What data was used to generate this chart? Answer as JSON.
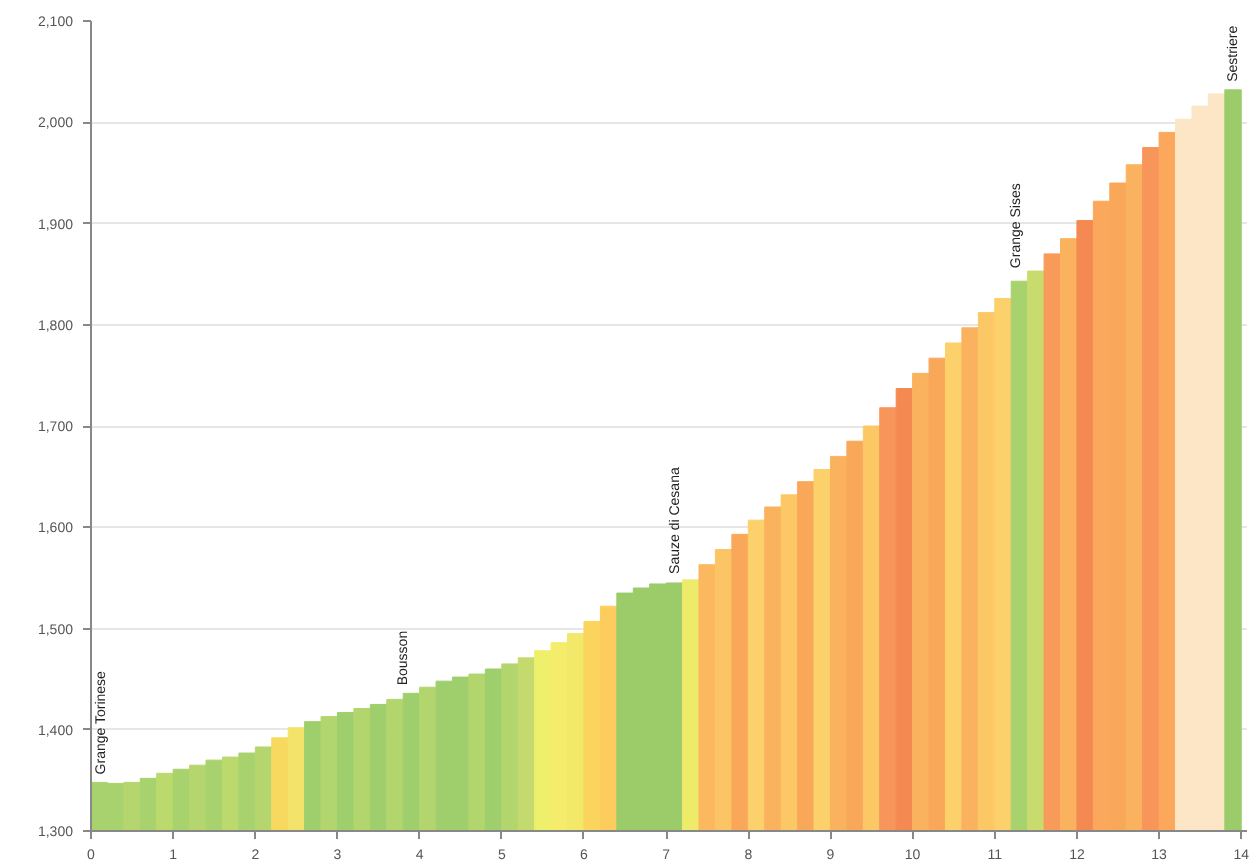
{
  "chart_data": {
    "type": "bar",
    "x": [
      0.1,
      0.3,
      0.5,
      0.7,
      0.9,
      1.1,
      1.3,
      1.5,
      1.7,
      1.9,
      2.1,
      2.3,
      2.5,
      2.7,
      2.9,
      3.1,
      3.3,
      3.5,
      3.7,
      3.9,
      4.1,
      4.3,
      4.5,
      4.7,
      4.9,
      5.1,
      5.3,
      5.5,
      5.7,
      5.9,
      6.1,
      6.3,
      6.5,
      6.7,
      6.9,
      7.1,
      7.3,
      7.5,
      7.7,
      7.9,
      8.1,
      8.3,
      8.5,
      8.7,
      8.9,
      9.1,
      9.3,
      9.5,
      9.7,
      9.9,
      10.1,
      10.3,
      10.5,
      10.7,
      10.9,
      11.1,
      11.3,
      11.5,
      11.7,
      11.9,
      12.1,
      12.3,
      12.5,
      12.7,
      12.9,
      13.1,
      13.3,
      13.5,
      13.7,
      13.9
    ],
    "values": [
      1348,
      1347,
      1348,
      1352,
      1357,
      1361,
      1365,
      1370,
      1373,
      1377,
      1383,
      1392,
      1402,
      1408,
      1413,
      1417,
      1421,
      1425,
      1430,
      1436,
      1442,
      1448,
      1452,
      1455,
      1460,
      1465,
      1471,
      1478,
      1486,
      1495,
      1507,
      1522,
      1535,
      1540,
      1544,
      1545,
      1548,
      1563,
      1578,
      1593,
      1607,
      1620,
      1632,
      1645,
      1657,
      1670,
      1685,
      1700,
      1718,
      1737,
      1752,
      1767,
      1782,
      1797,
      1812,
      1826,
      1843,
      1853,
      1870,
      1885,
      1903,
      1922,
      1940,
      1958,
      1975,
      1990,
      2003,
      2016,
      2028,
      2032
    ],
    "colors": [
      "#a8d26e",
      "#a8d26e",
      "#b5d66e",
      "#a8d26e",
      "#bcd96e",
      "#a8d26e",
      "#b5d66e",
      "#a8d26e",
      "#bcd96e",
      "#a8d26e",
      "#b5d66e",
      "#f6d95e",
      "#f3e36a",
      "#9fcf6c",
      "#b3d56e",
      "#9fcf6c",
      "#b3d56e",
      "#9fcf6c",
      "#b3d56e",
      "#9fcf6c",
      "#b3d56e",
      "#9fcf6c",
      "#9fcf6c",
      "#b3d56e",
      "#9fcf6c",
      "#b3d56e",
      "#c4da6e",
      "#eef06c",
      "#f4ec6a",
      "#f2e86a",
      "#fbd45e",
      "#fccd5c",
      "#9ccc6a",
      "#9ccc6a",
      "#9ccc6a",
      "#9ccc6a",
      "#eeea6a",
      "#fcb85e",
      "#fbc566",
      "#f9a85a",
      "#fcd06a",
      "#fbb25e",
      "#fcc866",
      "#f9a85a",
      "#fcd06a",
      "#fbb25e",
      "#f9a85a",
      "#fcc866",
      "#f7955a",
      "#f48a52",
      "#fbb25e",
      "#f9a85a",
      "#fcd06a",
      "#fbb25e",
      "#fcc866",
      "#fcd06a",
      "#a8d26e",
      "#c8dc6e",
      "#f79a5a",
      "#fbb25e",
      "#f48a52",
      "#fba85c",
      "#f9a85a",
      "#fbb25e",
      "#f7955a",
      "#fba85c",
      "#fde6c6",
      "#fde6c6",
      "#fde6c6",
      "#9ccc6a"
    ],
    "xlim": [
      0,
      14.07
    ],
    "ylim": [
      1300,
      2100
    ],
    "xticks": [
      0,
      1,
      2,
      3,
      4,
      5,
      6,
      7,
      8,
      9,
      10,
      11,
      12,
      13,
      14
    ],
    "yticks": [
      {
        "value": 1300,
        "label": "1,300"
      },
      {
        "value": 1400,
        "label": "1,400"
      },
      {
        "value": 1500,
        "label": "1,500"
      },
      {
        "value": 1600,
        "label": "1,600"
      },
      {
        "value": 1700,
        "label": "1,700"
      },
      {
        "value": 1800,
        "label": "1,800"
      },
      {
        "value": 1900,
        "label": "1,900"
      },
      {
        "value": 2000,
        "label": "2,000"
      },
      {
        "value": 2100,
        "label": "2,100"
      }
    ],
    "grid": "y",
    "annotations": [
      {
        "text": "Grange Torinese",
        "x": 0,
        "y": 1348
      },
      {
        "text": "Bousson",
        "x": 3.9,
        "y": 1436
      },
      {
        "text": "Sauze di Cesana",
        "x": 7.2,
        "y": 1546
      },
      {
        "text": "Grange Sises",
        "x": 11.35,
        "y": 1848
      },
      {
        "text": "Sestriere",
        "x": 14,
        "y": 2032
      }
    ]
  }
}
